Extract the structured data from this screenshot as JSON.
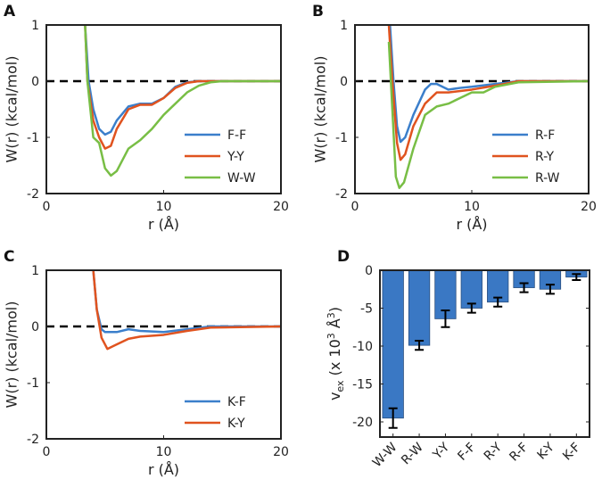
{
  "chart_data": [
    {
      "panel": "A",
      "type": "line",
      "xlabel": "r (Å)",
      "ylabel": "W(r) (kcal/mol)",
      "xlim": [
        0,
        20
      ],
      "ylim": [
        -2,
        1
      ],
      "xticks": [
        0,
        10,
        20
      ],
      "yticks": [
        1,
        0,
        -1,
        -2
      ],
      "zero_line": "dashed",
      "legend": "bottom-right",
      "series": [
        {
          "name": "F-F",
          "color": "#3B7FCB",
          "x": [
            3.3,
            3.6,
            4,
            4.5,
            5,
            5.5,
            6,
            7,
            8,
            9,
            10,
            11,
            12,
            13,
            20
          ],
          "y": [
            1,
            0,
            -0.5,
            -0.85,
            -0.95,
            -0.9,
            -0.7,
            -0.45,
            -0.4,
            -0.4,
            -0.3,
            -0.1,
            -0.02,
            0,
            0
          ]
        },
        {
          "name": "Y-Y",
          "color": "#E0531F",
          "x": [
            3.3,
            3.5,
            4,
            4.5,
            5,
            5.5,
            6,
            7,
            8,
            9,
            10,
            11,
            12,
            13,
            20
          ],
          "y": [
            1,
            0,
            -0.7,
            -1.0,
            -1.2,
            -1.15,
            -0.85,
            -0.5,
            -0.42,
            -0.42,
            -0.3,
            -0.12,
            -0.03,
            0,
            0
          ]
        },
        {
          "name": "W-W",
          "color": "#78BE45",
          "x": [
            3.3,
            3.5,
            4,
            4.5,
            5,
            5.5,
            6,
            7,
            8,
            9,
            10,
            11,
            12,
            13,
            14,
            15,
            20
          ],
          "y": [
            1,
            0,
            -1.0,
            -1.1,
            -1.55,
            -1.68,
            -1.6,
            -1.2,
            -1.05,
            -0.85,
            -0.6,
            -0.4,
            -0.2,
            -0.08,
            -0.02,
            0,
            0
          ]
        }
      ]
    },
    {
      "panel": "B",
      "type": "line",
      "xlabel": "r (Å)",
      "ylabel": "W(r) (kcal/mol)",
      "xlim": [
        0,
        20
      ],
      "ylim": [
        -2,
        1
      ],
      "xticks": [
        0,
        10,
        20
      ],
      "yticks": [
        1,
        0,
        -1,
        -2
      ],
      "zero_line": "dashed",
      "legend": "bottom-right",
      "series": [
        {
          "name": "R-F",
          "color": "#3B7FCB",
          "x": [
            3,
            3.3,
            3.6,
            3.9,
            4.3,
            5,
            6,
            6.5,
            7,
            8,
            9,
            10,
            12,
            14,
            20
          ],
          "y": [
            1,
            0,
            -0.8,
            -1.08,
            -1.0,
            -0.6,
            -0.15,
            -0.05,
            -0.05,
            -0.15,
            -0.12,
            -0.1,
            -0.05,
            0,
            0
          ]
        },
        {
          "name": "R-Y",
          "color": "#E0531F",
          "x": [
            2.9,
            3.2,
            3.6,
            3.9,
            4.3,
            5,
            6,
            7,
            8,
            10,
            12,
            14,
            20
          ],
          "y": [
            1,
            0,
            -1.1,
            -1.4,
            -1.3,
            -0.8,
            -0.4,
            -0.2,
            -0.2,
            -0.15,
            -0.08,
            0,
            0
          ]
        },
        {
          "name": "R-W",
          "color": "#78BE45",
          "x": [
            2.9,
            3.2,
            3.5,
            3.8,
            4.2,
            5,
            6,
            7,
            8,
            9,
            10,
            11,
            12,
            14,
            20
          ],
          "y": [
            0.7,
            -0.5,
            -1.7,
            -1.9,
            -1.8,
            -1.2,
            -0.6,
            -0.45,
            -0.4,
            -0.3,
            -0.2,
            -0.2,
            -0.1,
            -0.02,
            0
          ]
        }
      ]
    },
    {
      "panel": "C",
      "type": "line",
      "xlabel": "r (Å)",
      "ylabel": "W(r) (kcal/mol)",
      "xlim": [
        0,
        20
      ],
      "ylim": [
        -2,
        1
      ],
      "xticks": [
        0,
        10,
        20
      ],
      "yticks": [
        1,
        0,
        -1,
        -2
      ],
      "zero_line": "dashed",
      "legend": "bottom-right",
      "series": [
        {
          "name": "K-F",
          "color": "#3B7FCB",
          "x": [
            4,
            4.3,
            4.7,
            5,
            6,
            7,
            8,
            10,
            12,
            14,
            20
          ],
          "y": [
            1,
            0.3,
            -0.05,
            -0.1,
            -0.1,
            -0.05,
            -0.08,
            -0.1,
            -0.05,
            0,
            0
          ]
        },
        {
          "name": "K-Y",
          "color": "#E0531F",
          "x": [
            4,
            4.3,
            4.7,
            5.2,
            6,
            7,
            8,
            10,
            12,
            14,
            20
          ],
          "y": [
            1,
            0.3,
            -0.2,
            -0.4,
            -0.32,
            -0.22,
            -0.18,
            -0.15,
            -0.08,
            -0.02,
            0
          ]
        }
      ]
    },
    {
      "panel": "D",
      "type": "bar",
      "ylabel_parts": [
        "v",
        "ex",
        " (x 10",
        "3",
        " Å",
        "3",
        ")"
      ],
      "ylim": [
        -22,
        0
      ],
      "yticks": [
        0,
        -5,
        -10,
        -15,
        -20
      ],
      "color": "#3A78C4",
      "categories": [
        "W-W",
        "R-W",
        "Y-Y",
        "F-F",
        "R-Y",
        "R-F",
        "K-Y",
        "K-F"
      ],
      "values": [
        -19.5,
        -9.9,
        -6.4,
        -5.0,
        -4.2,
        -2.3,
        -2.5,
        -0.9
      ],
      "errors": [
        1.3,
        0.6,
        1.1,
        0.6,
        0.6,
        0.6,
        0.6,
        0.4
      ]
    }
  ]
}
